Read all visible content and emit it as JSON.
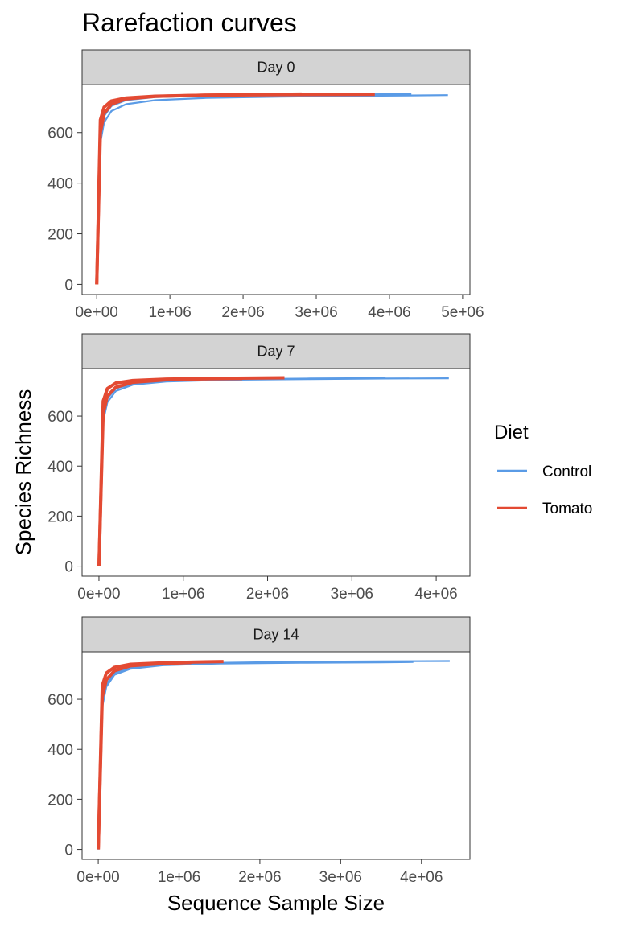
{
  "chart_data": {
    "type": "line",
    "title": "Rarefaction curves",
    "xlabel": "Sequence Sample Size",
    "ylabel": "Species Richness",
    "grid": false,
    "legend": {
      "title": "Diet",
      "placement": "right",
      "entries": [
        {
          "name": "Control",
          "color": "#5a9be6"
        },
        {
          "name": "Tomato",
          "color": "#e34a33"
        }
      ]
    },
    "panels": [
      {
        "label": "Day 0",
        "xlim": [
          -200000,
          5100000
        ],
        "ylim": [
          -40,
          790
        ],
        "x_ticks": [
          0,
          1000000,
          2000000,
          3000000,
          4000000,
          5000000
        ],
        "x_tick_labels": [
          "0e+00",
          "1e+06",
          "2e+06",
          "3e+06",
          "4e+06",
          "5e+06"
        ],
        "y_ticks": [
          0,
          200,
          400,
          600
        ],
        "y_tick_labels": [
          "0",
          "200",
          "400",
          "600"
        ],
        "series": [
          {
            "name": "Control",
            "x": [
              0,
              50000,
              100000,
              200000,
              400000,
              800000,
              1500000,
              2500000,
              3500000,
              4800000
            ],
            "y": [
              0,
              560,
              640,
              685,
              712,
              728,
              737,
              742,
              745,
              748
            ]
          },
          {
            "name": "Control",
            "x": [
              0,
              50000,
              100000,
              200000,
              400000,
              800000,
              1500000,
              2500000,
              3500000,
              4300000
            ],
            "y": [
              0,
              590,
              665,
              705,
              728,
              740,
              746,
              749,
              751,
              752
            ]
          },
          {
            "name": "Tomato",
            "x": [
              0,
              50000,
              100000,
              200000,
              400000,
              800000,
              1500000,
              2500000,
              3800000
            ],
            "y": [
              0,
              650,
              700,
              725,
              737,
              744,
              748,
              750,
              751
            ]
          },
          {
            "name": "Tomato",
            "x": [
              0,
              50000,
              100000,
              200000,
              400000,
              800000,
              1500000,
              2000000,
              2800000
            ],
            "y": [
              0,
              600,
              675,
              712,
              733,
              743,
              748,
              750,
              752
            ]
          }
        ]
      },
      {
        "label": "Day 7",
        "xlim": [
          -200000,
          4400000
        ],
        "ylim": [
          -40,
          790
        ],
        "x_ticks": [
          0,
          1000000,
          2000000,
          3000000,
          4000000
        ],
        "x_tick_labels": [
          "0e+00",
          "1e+06",
          "2e+06",
          "3e+06",
          "4e+06"
        ],
        "y_ticks": [
          0,
          200,
          400,
          600
        ],
        "y_tick_labels": [
          "0",
          "200",
          "400",
          "600"
        ],
        "series": [
          {
            "name": "Control",
            "x": [
              0,
              50000,
              100000,
              200000,
              400000,
              800000,
              1500000,
              2500000,
              3400000,
              4150000
            ],
            "y": [
              0,
              580,
              655,
              700,
              725,
              738,
              745,
              748,
              750,
              751
            ]
          },
          {
            "name": "Control",
            "x": [
              0,
              50000,
              100000,
              200000,
              400000,
              800000,
              1500000,
              2500000,
              3400000
            ],
            "y": [
              0,
              600,
              670,
              710,
              730,
              741,
              747,
              750,
              752
            ]
          },
          {
            "name": "Tomato",
            "x": [
              0,
              50000,
              100000,
              200000,
              400000,
              800000,
              1500000,
              2200000
            ],
            "y": [
              0,
              660,
              710,
              732,
              742,
              748,
              751,
              753
            ]
          },
          {
            "name": "Tomato",
            "x": [
              0,
              50000,
              100000,
              200000,
              400000,
              800000,
              1300000,
              1700000
            ],
            "y": [
              0,
              610,
              680,
              715,
              735,
              745,
              749,
              750
            ]
          }
        ]
      },
      {
        "label": "Day 14",
        "xlim": [
          -200000,
          4600000
        ],
        "ylim": [
          -40,
          790
        ],
        "x_ticks": [
          0,
          1000000,
          2000000,
          3000000,
          4000000
        ],
        "x_tick_labels": [
          "0e+00",
          "1e+06",
          "2e+06",
          "3e+06",
          "4e+06"
        ],
        "y_ticks": [
          0,
          200,
          400,
          600
        ],
        "y_tick_labels": [
          "0",
          "200",
          "400",
          "600"
        ],
        "series": [
          {
            "name": "Control",
            "x": [
              0,
              50000,
              100000,
              200000,
              400000,
              800000,
              1500000,
              2500000,
              3500000,
              4350000
            ],
            "y": [
              0,
              590,
              660,
              705,
              728,
              740,
              746,
              750,
              752,
              753
            ]
          },
          {
            "name": "Control",
            "x": [
              0,
              50000,
              100000,
              200000,
              400000,
              800000,
              1500000,
              2500000,
              3500000,
              3900000
            ],
            "y": [
              0,
              570,
              650,
              698,
              722,
              736,
              743,
              746,
              748,
              749
            ]
          },
          {
            "name": "Tomato",
            "x": [
              0,
              50000,
              100000,
              200000,
              400000,
              800000,
              1200000,
              1550000
            ],
            "y": [
              0,
              655,
              705,
              728,
              740,
              746,
              749,
              751
            ]
          },
          {
            "name": "Tomato",
            "x": [
              0,
              50000,
              100000,
              200000,
              400000,
              800000,
              1150000
            ],
            "y": [
              0,
              610,
              678,
              714,
              734,
              743,
              747
            ]
          }
        ]
      }
    ]
  }
}
